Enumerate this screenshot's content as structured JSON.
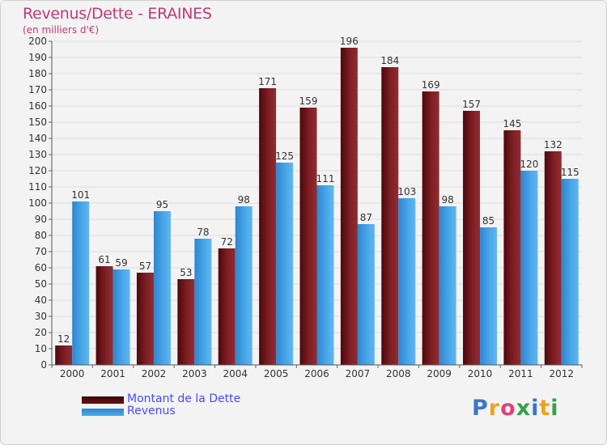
{
  "title": "Revenus/Dette - ERAINES",
  "subtitle": "(en milliers d'€)",
  "legend": {
    "dette_label": "Montant de la Dette",
    "revenus_label": "Revenus"
  },
  "logo": {
    "text": "Proxiti",
    "letters": [
      "P",
      "r",
      "o",
      "x",
      "i",
      "t",
      "i"
    ],
    "colors": [
      "#3a76c9",
      "#f0a21b",
      "#e2407a",
      "#35a047",
      "#3a76c9",
      "#f0a21b",
      "#35a047"
    ]
  },
  "colors": {
    "dette": "#6b1015",
    "revenus": "#3b9de0",
    "title": "#c0397a",
    "legend_text": "#4a4aff"
  },
  "chart_data": {
    "type": "bar",
    "title": "Revenus/Dette - ERAINES",
    "subtitle": "(en milliers d'€)",
    "categories": [
      "2000",
      "2001",
      "2002",
      "2003",
      "2004",
      "2005",
      "2006",
      "2007",
      "2008",
      "2009",
      "2010",
      "2011",
      "2012"
    ],
    "series": [
      {
        "name": "Montant de la Dette",
        "values": [
          12,
          61,
          57,
          53,
          72,
          171,
          159,
          196,
          184,
          169,
          157,
          145,
          132
        ]
      },
      {
        "name": "Revenus",
        "values": [
          101,
          59,
          95,
          78,
          98,
          125,
          111,
          87,
          103,
          98,
          85,
          120,
          115
        ]
      }
    ],
    "ylim": [
      0,
      200
    ],
    "ytick_step": 10,
    "grid": true,
    "legend_position": "bottom-left"
  }
}
